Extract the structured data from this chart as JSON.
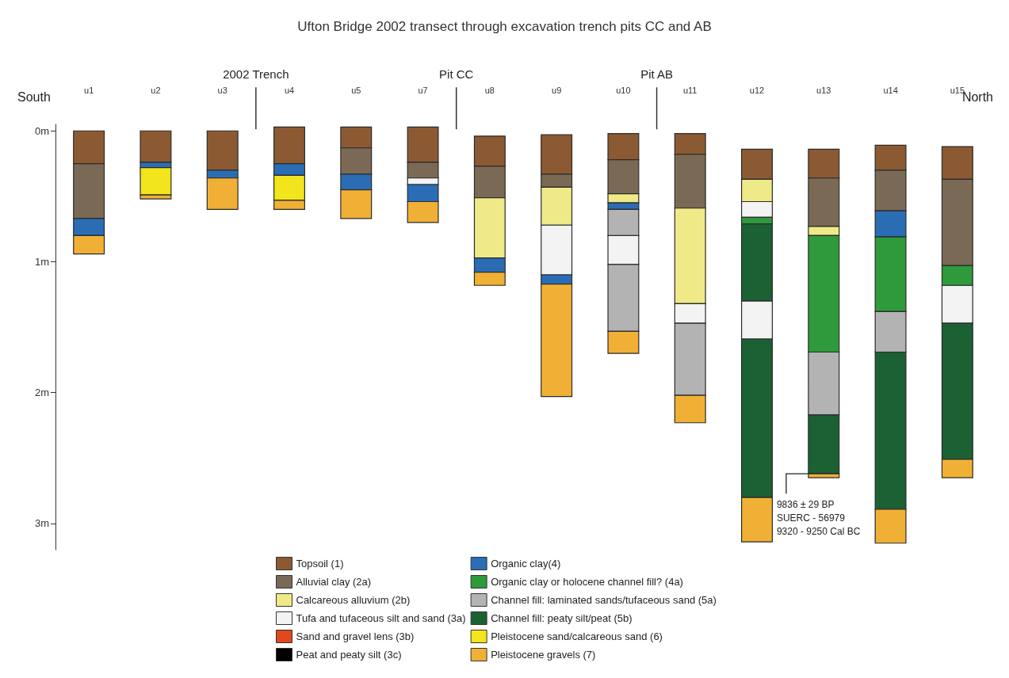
{
  "chart_data": {
    "type": "bar",
    "title": "Ufton Bridge 2002 transect through excavation trench pits CC and AB",
    "categories": [
      "u1",
      "u2",
      "u3",
      "u4",
      "u5",
      "u7",
      "u8",
      "u9",
      "u10",
      "u11",
      "u12",
      "u13",
      "u14",
      "u15"
    ],
    "ylim": [
      3.2,
      -0.05
    ],
    "yticks": [
      {
        "value": 0,
        "label": "0m"
      },
      {
        "value": 1,
        "label": "1m"
      },
      {
        "value": 2,
        "label": "2m"
      },
      {
        "value": 3,
        "label": "3m"
      }
    ],
    "grid": false,
    "legend": "bottom",
    "series": [
      {
        "name": "Topsoil (1)",
        "color": "#8c5a32",
        "base": [
          0,
          0,
          0,
          -0.03,
          -0.03,
          -0.03,
          0.04,
          0.03,
          0.02,
          0.02,
          0.14,
          0.14,
          0.11,
          0.12
        ],
        "values": [
          0.25,
          0.24,
          0.3,
          0.28,
          0.16,
          0.27,
          0.23,
          0.3,
          0.2,
          0.16,
          0.23,
          0.22,
          0.19,
          0.25
        ]
      },
      {
        "name": "Alluvial clay (2a)",
        "color": "#7a6a55",
        "base": [
          0.25,
          null,
          null,
          null,
          0.13,
          0.24,
          0.27,
          0.33,
          0.22,
          0.18,
          null,
          0.36,
          0.3,
          0.37
        ],
        "values": [
          0.42,
          null,
          null,
          null,
          0.2,
          0.12,
          0.24,
          0.1,
          0.26,
          0.41,
          null,
          0.37,
          0.31,
          0.66
        ]
      },
      {
        "name": "Calcareous alluvium (2b)",
        "color": "#efe987",
        "base": [
          null,
          null,
          null,
          null,
          null,
          null,
          0.51,
          0.43,
          0.48,
          0.59,
          0.37,
          0.73,
          null,
          null
        ],
        "values": [
          null,
          null,
          null,
          null,
          null,
          null,
          0.46,
          0.29,
          0.07,
          0.73,
          0.17,
          0.07,
          null,
          null
        ]
      },
      {
        "name": "Tufa and tufaceous silt and sand (3a)",
        "color": "#f3f3f3",
        "base": [
          null,
          null,
          null,
          null,
          null,
          0.36,
          null,
          0.72,
          0.8,
          1.32,
          0.54,
          null,
          null,
          1.18
        ],
        "values": [
          null,
          null,
          null,
          null,
          null,
          0.05,
          null,
          0.38,
          0.22,
          0.15,
          0.12,
          null,
          null,
          0.29
        ]
      },
      {
        "name": "Sand and gravel lens (3b)",
        "color": "#e0491f",
        "base": [
          null,
          null,
          null,
          null,
          null,
          null,
          null,
          null,
          null,
          null,
          null,
          null,
          null,
          null
        ],
        "values": [
          null,
          null,
          null,
          null,
          null,
          null,
          null,
          null,
          null,
          null,
          null,
          null,
          null,
          null
        ]
      },
      {
        "name": "Peat and peaty silt (3c)",
        "color": "#000000",
        "base": [
          null,
          null,
          null,
          null,
          null,
          null,
          null,
          null,
          null,
          null,
          null,
          null,
          null,
          null
        ],
        "values": [
          null,
          null,
          null,
          null,
          null,
          null,
          null,
          null,
          null,
          null,
          null,
          null,
          null,
          null
        ]
      },
      {
        "name": "Organic clay(4)",
        "color": "#2a6db5",
        "base": [
          0.67,
          0.24,
          0.3,
          0.25,
          0.33,
          0.41,
          0.97,
          1.1,
          0.55,
          null,
          null,
          null,
          0.61,
          null
        ],
        "values": [
          0.13,
          0.04,
          0.06,
          0.09,
          0.12,
          0.13,
          0.11,
          0.07,
          0.05,
          null,
          null,
          null,
          0.2,
          null
        ]
      },
      {
        "name": "Organic clay or holocene channel fill? (4a)",
        "color": "#2e9a3c",
        "base": [
          null,
          null,
          null,
          null,
          null,
          null,
          null,
          null,
          null,
          null,
          0.66,
          0.8,
          0.81,
          1.03
        ],
        "values": [
          null,
          null,
          null,
          null,
          null,
          null,
          null,
          null,
          null,
          null,
          0.05,
          0.89,
          0.57,
          0.15
        ]
      },
      {
        "name": "Channel fill: laminated sands/tufaceous sand (5a)",
        "color": "#b3b3b3",
        "base": [
          null,
          null,
          null,
          null,
          null,
          null,
          null,
          null,
          0.6,
          1.47,
          null,
          1.69,
          1.38,
          null
        ],
        "values": [
          null,
          null,
          null,
          null,
          null,
          null,
          null,
          null,
          0.2,
          0.55,
          null,
          0.48,
          0.31,
          null
        ]
      },
      {
        "name": "Channel fill: peaty silt/peat (5b)",
        "color": "#1b6134",
        "base": [
          null,
          null,
          null,
          null,
          null,
          null,
          null,
          null,
          null,
          null,
          0.71,
          2.17,
          1.69,
          1.47
        ],
        "values": [
          null,
          null,
          null,
          null,
          null,
          null,
          null,
          null,
          null,
          null,
          0.59,
          0.45,
          1.2,
          1.04
        ]
      },
      {
        "name": "Pleistocene sand/calcareous sand (6)",
        "color": "#f2e51c",
        "base": [
          null,
          0.28,
          null,
          0.34,
          null,
          null,
          null,
          null,
          null,
          null,
          null,
          null,
          null,
          null
        ],
        "values": [
          null,
          0.21,
          null,
          0.19,
          null,
          null,
          null,
          null,
          null,
          null,
          null,
          null,
          null,
          null
        ]
      },
      {
        "name": "Pleistocene gravels (7)",
        "color": "#f0b035",
        "base": [
          0.8,
          0.49,
          0.36,
          0.53,
          0.45,
          0.54,
          1.08,
          1.17,
          1.53,
          2.02,
          2.8,
          2.62,
          2.89,
          2.51
        ],
        "values": [
          0.14,
          0.03,
          0.24,
          0.07,
          0.22,
          0.16,
          0.1,
          0.86,
          0.17,
          0.21,
          0.34,
          0.03,
          0.26,
          0.14
        ]
      },
      {
        "color": "#f3f3f3",
        "base": [
          null,
          null,
          null,
          null,
          null,
          null,
          null,
          null,
          null,
          null,
          1.3,
          null,
          null,
          null
        ],
        "values": [
          null,
          null,
          null,
          null,
          null,
          null,
          null,
          null,
          null,
          null,
          0.29,
          null,
          null,
          null
        ]
      },
      {
        "color": "#b3b3b3",
        "base": [
          null,
          null,
          null,
          null,
          null,
          null,
          null,
          null,
          1.02,
          null,
          null,
          null,
          null,
          null
        ],
        "values": [
          null,
          null,
          null,
          null,
          null,
          null,
          null,
          null,
          0.51,
          null,
          null,
          null,
          null,
          null
        ]
      },
      {
        "color": "#1b6134",
        "base": [
          null,
          null,
          null,
          null,
          null,
          null,
          null,
          null,
          null,
          null,
          1.59,
          null,
          null,
          null
        ],
        "values": [
          null,
          null,
          null,
          null,
          null,
          null,
          null,
          null,
          null,
          null,
          1.21,
          null,
          null,
          null
        ]
      }
    ],
    "ref_lines": [
      {
        "axis": "x",
        "value": "u4",
        "label": "2002 Trench"
      },
      {
        "axis": "x",
        "value": "u8",
        "label": "Pit CC"
      },
      {
        "axis": "x",
        "value": "u11",
        "label": "Pit AB"
      }
    ],
    "annotations": [
      "South",
      "North",
      {
        "text": "9836 ± 29 BP\nSUERC - 56979\n9320 - 9250 Cal BC",
        "x": "u13",
        "y": 2.62
      }
    ]
  }
}
